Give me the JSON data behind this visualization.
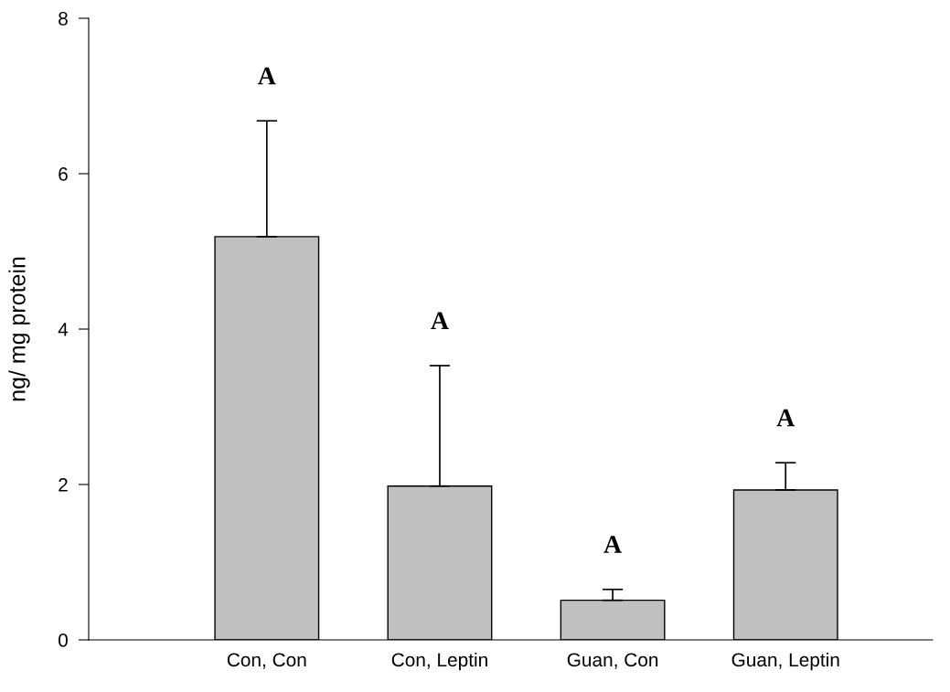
{
  "chart_data": {
    "type": "bar",
    "ylabel": "ng/ mg protein",
    "categories": [
      "Con, Con",
      "Con, Leptin",
      "Guan, Con",
      "Guan, Leptin"
    ],
    "values": [
      5.19,
      1.98,
      0.51,
      1.93
    ],
    "errors": [
      [
        5.19,
        6.68
      ],
      [
        1.98,
        3.53
      ],
      [
        0.51,
        0.65
      ],
      [
        1.93,
        2.28
      ]
    ],
    "color": "#c0c0c0",
    "ylim": [
      0,
      8
    ],
    "yticks": [
      0,
      2,
      4,
      6,
      8
    ],
    "grid": false,
    "legend": false,
    "annotations": [
      "A",
      "A",
      "A",
      "A"
    ]
  }
}
